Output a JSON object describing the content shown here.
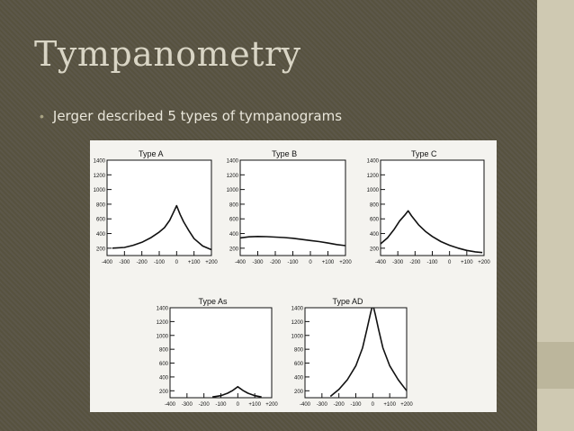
{
  "slide": {
    "title": "Tympanometry",
    "bullet": "Jerger described 5 types of tympanograms"
  },
  "colors": {
    "background": "#5a5547",
    "title": "#d9d5c5",
    "bullet_marker": "#a8a283",
    "right_band": "#cfc9b2",
    "curve": "#111111"
  },
  "chart_data": [
    {
      "type": "line",
      "title": "Type A",
      "xticks": [
        "-400",
        "-300",
        "-200",
        "-100",
        "0",
        "+100",
        "+200"
      ],
      "yticks": [
        "1400",
        "1200",
        "1000",
        "800",
        "600",
        "400",
        "200"
      ],
      "xlim": [
        -400,
        200
      ],
      "ylim": [
        100,
        1400
      ],
      "series": [
        {
          "x": [
            -370,
            -300,
            -250,
            -200,
            -150,
            -100,
            -70,
            -40,
            -20,
            0,
            20,
            40,
            70,
            100,
            150,
            200
          ],
          "values": [
            200,
            210,
            240,
            280,
            340,
            420,
            480,
            580,
            680,
            780,
            660,
            560,
            440,
            330,
            230,
            180
          ]
        }
      ]
    },
    {
      "type": "line",
      "title": "Type B",
      "xticks": [
        "-400",
        "-300",
        "-200",
        "-100",
        "0",
        "+100",
        "+200"
      ],
      "yticks": [
        "1400",
        "1200",
        "1000",
        "800",
        "600",
        "400",
        "200"
      ],
      "xlim": [
        -400,
        200
      ],
      "ylim": [
        100,
        1400
      ],
      "series": [
        {
          "x": [
            -400,
            -350,
            -300,
            -250,
            -200,
            -150,
            -100,
            -50,
            0,
            50,
            100,
            150,
            200
          ],
          "values": [
            340,
            355,
            360,
            358,
            352,
            345,
            335,
            320,
            305,
            290,
            270,
            250,
            235
          ]
        }
      ]
    },
    {
      "type": "line",
      "title": "Type C",
      "xticks": [
        "-400",
        "-300",
        "-200",
        "-100",
        "0",
        "+100",
        "+200"
      ],
      "yticks": [
        "1400",
        "1200",
        "1000",
        "800",
        "600",
        "400",
        "200"
      ],
      "xlim": [
        -400,
        200
      ],
      "ylim": [
        100,
        1400
      ],
      "series": [
        {
          "x": [
            -400,
            -360,
            -320,
            -290,
            -260,
            -240,
            -220,
            -180,
            -140,
            -100,
            -50,
            0,
            50,
            100,
            150,
            190
          ],
          "values": [
            260,
            340,
            460,
            570,
            650,
            710,
            640,
            520,
            430,
            360,
            290,
            240,
            200,
            170,
            150,
            140
          ]
        }
      ]
    },
    {
      "type": "line",
      "title": "Type As",
      "xticks": [
        "-400",
        "-300",
        "-200",
        "-100",
        "0",
        "+100",
        "+200"
      ],
      "yticks": [
        "1400",
        "1200",
        "1000",
        "800",
        "600",
        "400",
        "200"
      ],
      "xlim": [
        -400,
        200
      ],
      "ylim": [
        100,
        1400
      ],
      "series": [
        {
          "x": [
            -150,
            -100,
            -60,
            -30,
            -10,
            0,
            10,
            30,
            60,
            100,
            140
          ],
          "values": [
            110,
            130,
            165,
            205,
            240,
            260,
            240,
            205,
            165,
            130,
            110
          ]
        }
      ]
    },
    {
      "type": "line",
      "title": "Type AD",
      "xticks": [
        "-400",
        "-300",
        "-200",
        "-100",
        "0",
        "+100",
        "+200"
      ],
      "yticks": [
        "1400",
        "1200",
        "1000",
        "800",
        "600",
        "400",
        "200"
      ],
      "xlim": [
        -400,
        200
      ],
      "ylim": [
        100,
        1400
      ],
      "series": [
        {
          "x": [
            -250,
            -200,
            -150,
            -100,
            -60,
            -35,
            -15,
            -5
          ],
          "values": [
            120,
            220,
            360,
            560,
            820,
            1080,
            1300,
            1400
          ]
        },
        {
          "x": [
            5,
            15,
            35,
            60,
            100,
            150,
            200
          ],
          "values": [
            1400,
            1300,
            1080,
            820,
            560,
            360,
            200
          ]
        }
      ]
    }
  ]
}
